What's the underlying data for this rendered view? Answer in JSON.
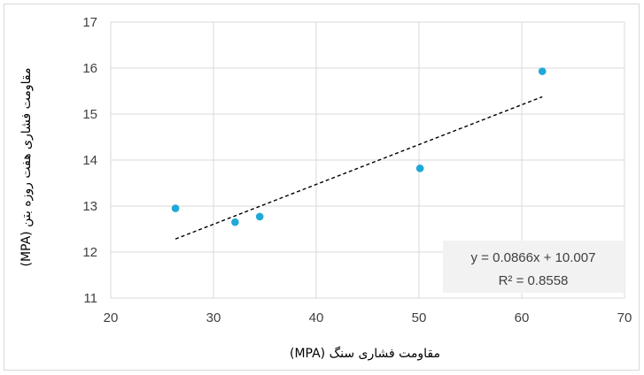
{
  "chart_data": {
    "type": "scatter",
    "title": "",
    "xlabel": "مقاومت فشاری سنگ (MPA)",
    "ylabel": "مقاومت فشاری هفت روزه بتن (MPA)",
    "xlim": [
      20,
      70
    ],
    "ylim": [
      11,
      17
    ],
    "x_ticks": [
      "20",
      "30",
      "40",
      "50",
      "60",
      "70"
    ],
    "y_ticks": [
      "11",
      "12",
      "13",
      "14",
      "15",
      "16",
      "17"
    ],
    "grid": true,
    "series": [
      {
        "color": "#1fa8d8",
        "points": [
          {
            "x": 26.3,
            "y": 12.95
          },
          {
            "x": 32.1,
            "y": 12.65
          },
          {
            "x": 34.5,
            "y": 12.77
          },
          {
            "x": 50.1,
            "y": 13.82
          },
          {
            "x": 62.0,
            "y": 15.93
          }
        ]
      }
    ],
    "trendline": {
      "type": "linear",
      "slope": 0.0866,
      "intercept": 10.007,
      "x_range": [
        26.3,
        62.0
      ],
      "style": "dashed",
      "color": "#000000",
      "equation_label": "y = 0.0866x + 10.007",
      "r2_label": "R² = 0.8558"
    }
  }
}
